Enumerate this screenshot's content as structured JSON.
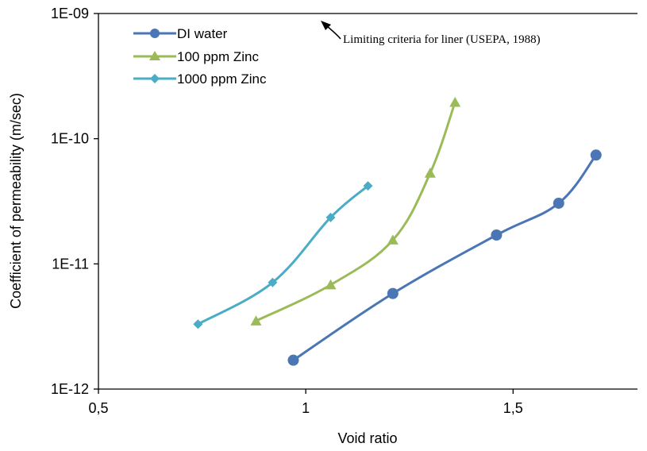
{
  "chart_data": {
    "type": "scatter",
    "title": "",
    "xlabel": "Void ratio",
    "ylabel": "Coefficient of permeability (m/sec)",
    "xlim": [
      0.5,
      1.8
    ],
    "ylim": [
      1e-12,
      1e-09
    ],
    "y_scale": "log",
    "x_ticks": [
      0.5,
      1,
      1.5
    ],
    "x_tick_labels": [
      "0,5",
      "1",
      "1,5"
    ],
    "y_ticks": [
      1e-12,
      1e-11,
      1e-10,
      1e-09
    ],
    "y_tick_labels": [
      "1E-12",
      "1E-11",
      "1E-10",
      "1E-09"
    ],
    "grid": false,
    "legend_position": "top-left",
    "series": [
      {
        "name": "DI water",
        "color": "#4a76b5",
        "marker": "circle",
        "x": [
          0.97,
          1.21,
          1.46,
          1.61,
          1.7
        ],
        "y": [
          1.7e-12,
          5.8e-12,
          1.7e-11,
          3.05e-11,
          7.4e-11
        ]
      },
      {
        "name": "100 ppm Zinc",
        "color": "#9bbb59",
        "marker": "triangle",
        "x": [
          0.88,
          1.06,
          1.21,
          1.3,
          1.36
        ],
        "y": [
          3.5e-12,
          6.8e-12,
          1.55e-11,
          5.3e-11,
          1.95e-10
        ]
      },
      {
        "name": "1000 ppm Zinc",
        "color": "#4bacc6",
        "marker": "diamond",
        "x": [
          0.74,
          0.92,
          1.06,
          1.15
        ],
        "y": [
          3.3e-12,
          7.1e-12,
          2.35e-11,
          4.2e-11
        ]
      }
    ],
    "annotations": [
      {
        "text": "Limiting criteria for liner (USEPA, 1988)",
        "arrow": true
      }
    ]
  }
}
